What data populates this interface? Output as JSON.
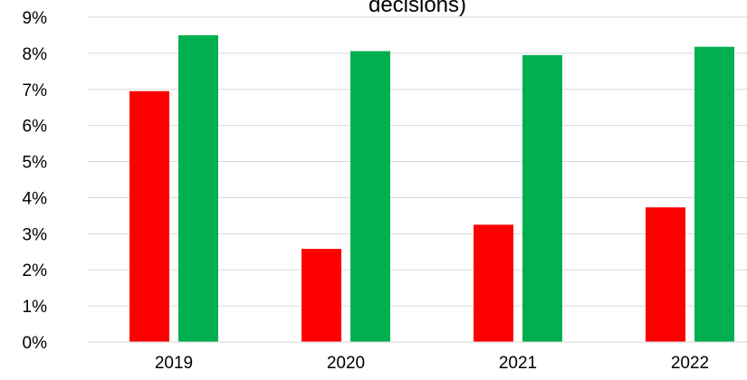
{
  "chart_data": {
    "type": "bar",
    "title": "decisions)",
    "categories": [
      "2019",
      "2020",
      "2021",
      "2022"
    ],
    "series": [
      {
        "values": [
          6.95,
          2.58,
          3.25,
          3.73
        ],
        "color": "#ff0000"
      },
      {
        "values": [
          8.5,
          8.06,
          7.95,
          8.18
        ],
        "color": "#00b050"
      }
    ],
    "ylim": [
      0,
      9
    ],
    "y_ticks": [
      0,
      1,
      2,
      3,
      4,
      5,
      6,
      7,
      8,
      9
    ],
    "y_tick_labels": [
      "0%",
      "1%",
      "2%",
      "3%",
      "4%",
      "5%",
      "6%",
      "7%",
      "8%",
      "9%"
    ],
    "xlabel": "",
    "ylabel": "",
    "grid": true,
    "legend": "none"
  }
}
